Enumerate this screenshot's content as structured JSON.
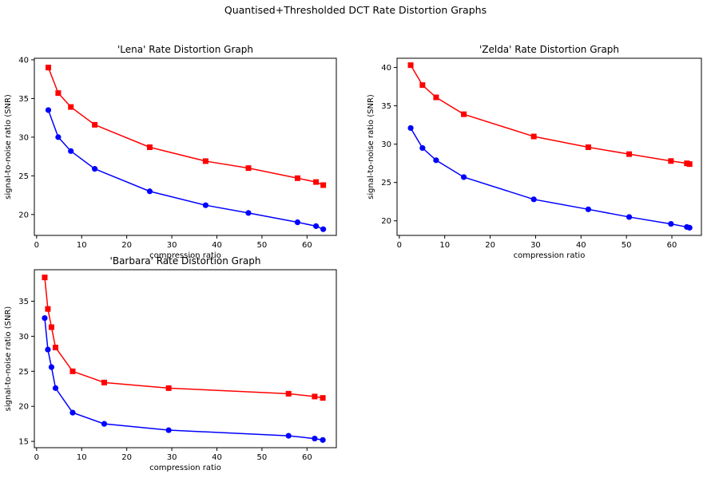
{
  "figure": {
    "suptitle": "Quantised+Thresholded DCT Rate Distortion Graphs"
  },
  "colors": {
    "series_a": "#ff0000",
    "series_b": "#0000ff",
    "axes": "#000000",
    "background": "#ffffff"
  },
  "chart_data": [
    {
      "type": "line",
      "title": "'Lena' Rate Distortion Graph",
      "xlabel": "compression ratio",
      "ylabel": "signal-to-noise ratio (SNR)",
      "xlim": [
        -0.5,
        66.5
      ],
      "ylim": [
        17.3,
        40.2
      ],
      "xticks": [
        0,
        10,
        20,
        30,
        40,
        50,
        60
      ],
      "yticks": [
        20,
        25,
        30,
        35,
        40
      ],
      "grid": false,
      "series": [
        {
          "color": "#ff0000",
          "marker": "square",
          "x": [
            2.6,
            4.8,
            7.6,
            12.9,
            25.1,
            37.5,
            47.0,
            57.9,
            62.0,
            63.6
          ],
          "y": [
            39.0,
            35.7,
            33.9,
            31.6,
            28.7,
            26.9,
            26.0,
            24.7,
            24.2,
            23.8
          ]
        },
        {
          "color": "#0000ff",
          "marker": "circle",
          "x": [
            2.6,
            4.8,
            7.6,
            12.9,
            25.1,
            37.5,
            47.0,
            57.9,
            62.0,
            63.6
          ],
          "y": [
            33.5,
            30.0,
            28.2,
            25.9,
            23.0,
            21.2,
            20.2,
            19.0,
            18.5,
            18.1
          ]
        }
      ]
    },
    {
      "type": "line",
      "title": "'Zelda' Rate Distortion Graph",
      "xlabel": "compression ratio",
      "ylabel": "signal-to-noise ratio (SNR)",
      "xlim": [
        -0.5,
        66.5
      ],
      "ylim": [
        18.1,
        41.2
      ],
      "xticks": [
        0,
        10,
        20,
        30,
        40,
        50,
        60
      ],
      "yticks": [
        20,
        25,
        30,
        35,
        40
      ],
      "grid": false,
      "series": [
        {
          "color": "#ff0000",
          "marker": "square",
          "x": [
            2.5,
            5.1,
            8.1,
            14.2,
            29.6,
            41.6,
            50.6,
            59.8,
            63.3,
            63.9
          ],
          "y": [
            40.3,
            37.7,
            36.1,
            33.9,
            31.0,
            29.6,
            28.7,
            27.8,
            27.5,
            27.4
          ]
        },
        {
          "color": "#0000ff",
          "marker": "circle",
          "x": [
            2.5,
            5.1,
            8.1,
            14.2,
            29.6,
            41.6,
            50.6,
            59.8,
            63.3,
            63.9
          ],
          "y": [
            32.1,
            29.5,
            27.9,
            25.7,
            22.8,
            21.5,
            20.5,
            19.6,
            19.2,
            19.1
          ]
        }
      ]
    },
    {
      "type": "line",
      "title": "'Barbara' Rate Distortion Graph",
      "xlabel": "compression ratio",
      "ylabel": "signal-to-noise ratio (SNR)",
      "xlim": [
        -0.5,
        66.5
      ],
      "ylim": [
        14.1,
        39.5
      ],
      "xticks": [
        0,
        10,
        20,
        30,
        40,
        50,
        60
      ],
      "yticks": [
        15,
        20,
        25,
        30,
        35
      ],
      "grid": false,
      "series": [
        {
          "color": "#ff0000",
          "marker": "square",
          "x": [
            1.8,
            2.5,
            3.3,
            4.2,
            8.0,
            15.0,
            29.3,
            55.9,
            61.7,
            63.5
          ],
          "y": [
            38.4,
            33.9,
            31.3,
            28.4,
            25.0,
            23.4,
            22.6,
            21.8,
            21.4,
            21.2
          ]
        },
        {
          "color": "#0000ff",
          "marker": "circle",
          "x": [
            1.8,
            2.5,
            3.3,
            4.2,
            8.0,
            15.0,
            29.3,
            55.9,
            61.7,
            63.5
          ],
          "y": [
            32.6,
            28.1,
            25.6,
            22.6,
            19.1,
            17.5,
            16.6,
            15.8,
            15.4,
            15.2
          ]
        }
      ]
    }
  ]
}
